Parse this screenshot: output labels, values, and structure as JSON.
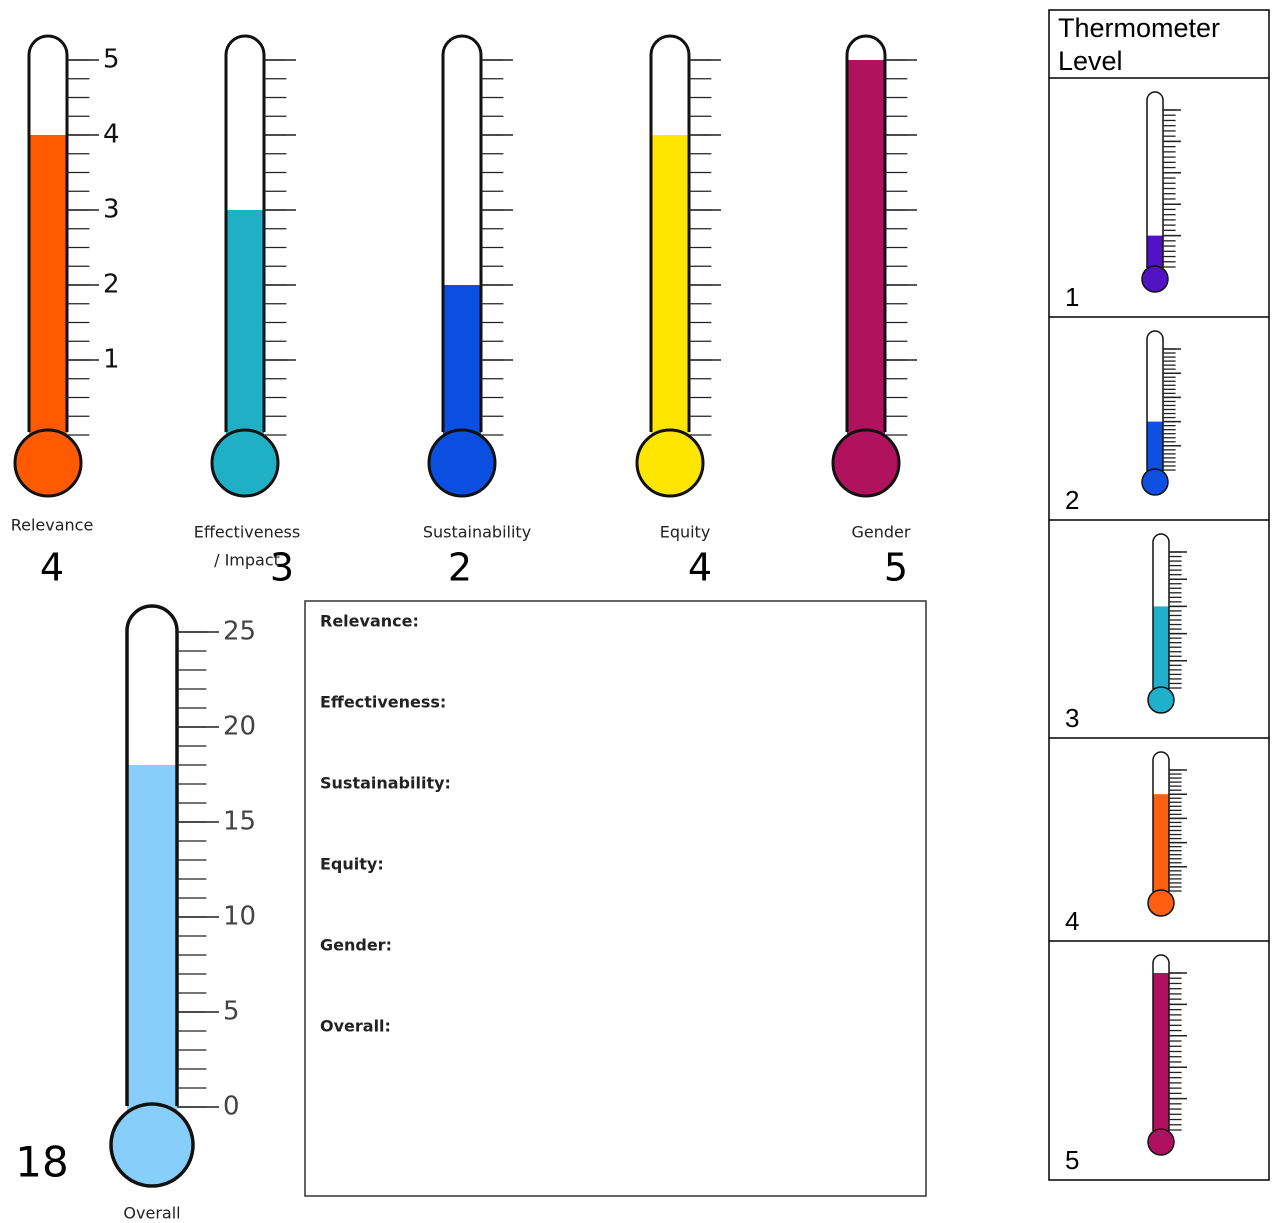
{
  "scale": {
    "min": 0,
    "max": 5,
    "ticks": [
      1,
      2,
      3,
      4,
      5
    ]
  },
  "thermometers": [
    {
      "label": [
        "Relevance"
      ],
      "score": 4,
      "color": "#ff5a00"
    },
    {
      "label": [
        "Effectiveness",
        "/ Impact"
      ],
      "score": 3,
      "color": "#1fb0c6"
    },
    {
      "label": [
        "Sustainability"
      ],
      "score": 2,
      "color": "#0a4fe0"
    },
    {
      "label": [
        "Equity"
      ],
      "score": 4,
      "color": "#ffe600"
    },
    {
      "label": [
        "Gender"
      ],
      "score": 5,
      "color": "#b0125e"
    }
  ],
  "overall": {
    "label": "Overall",
    "score": 18,
    "color": "#87cefa",
    "min": 0,
    "max": 25,
    "ticks": [
      0,
      5,
      10,
      15,
      20,
      25
    ]
  },
  "notes": [
    "Relevance:",
    "Effectiveness:",
    "Sustainability:",
    "Equity:",
    "Gender:",
    "Overall:"
  ],
  "legend": {
    "title": "Thermometer Level",
    "levels": [
      {
        "level": 1,
        "color": "#5012c4"
      },
      {
        "level": 2,
        "color": "#1050e0"
      },
      {
        "level": 3,
        "color": "#20b0cc"
      },
      {
        "level": 4,
        "color": "#ff6010"
      },
      {
        "level": 5,
        "color": "#b01060"
      }
    ]
  }
}
